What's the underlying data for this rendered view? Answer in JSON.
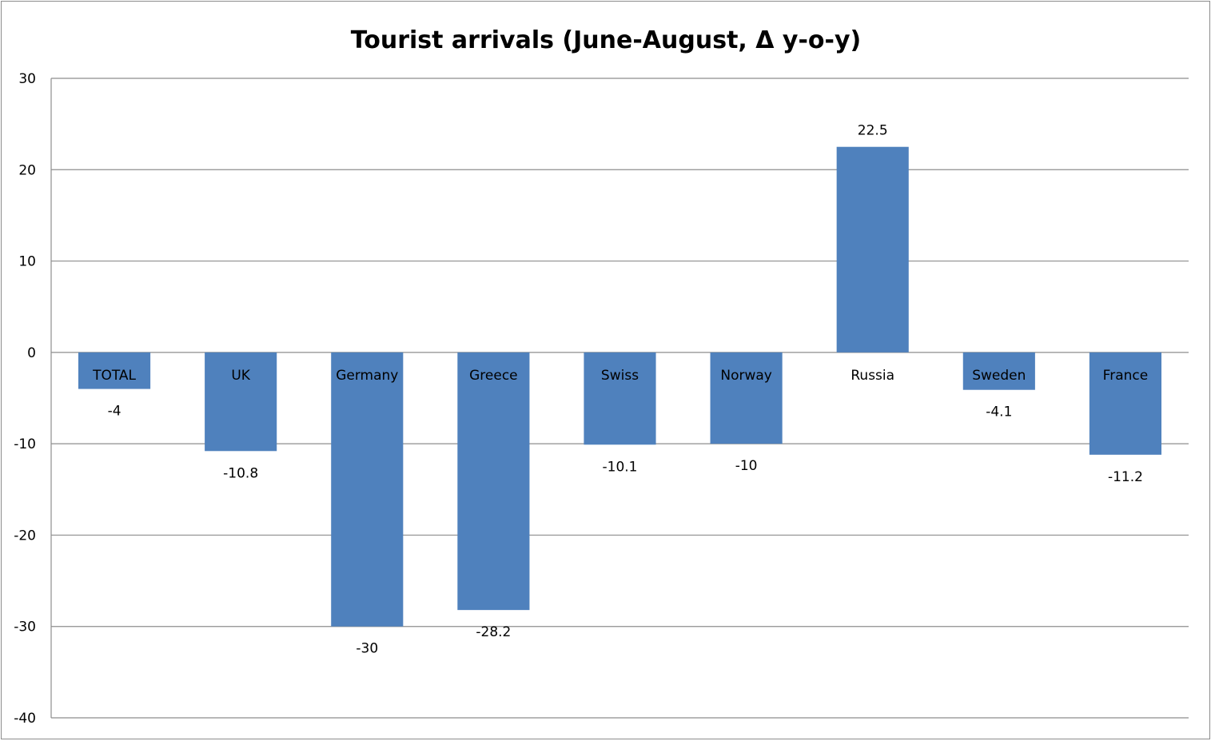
{
  "chart_data": {
    "type": "bar",
    "title": "Tourist arrivals (June-August, Δ y-o-y)",
    "categories": [
      "TOTAL",
      "UK",
      "Germany",
      "Greece",
      "Swiss",
      "Norway",
      "Russia",
      "Sweden",
      "France"
    ],
    "values": [
      -4,
      -10.8,
      -30,
      -28.2,
      -10.1,
      -10,
      22.5,
      -4.1,
      -11.2
    ],
    "data_labels": [
      "-4",
      "-10.8",
      "-30",
      "-28.2",
      "-10.1",
      "-10",
      "22.5",
      "-4.1",
      "-11.2"
    ],
    "ylim": [
      -40,
      30
    ],
    "yticks": [
      30,
      20,
      10,
      0,
      -10,
      -20,
      -30,
      -40
    ],
    "ytick_labels": [
      "30",
      "20",
      "10",
      "0",
      "-10",
      "-20",
      "-30",
      "-40"
    ],
    "grid": true,
    "legend": "none",
    "bar_color": "#4f81bd",
    "xlabel": "",
    "ylabel": ""
  }
}
